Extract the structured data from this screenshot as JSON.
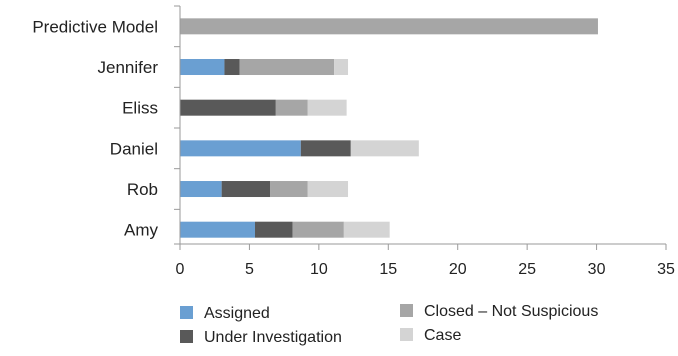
{
  "chart_data": {
    "type": "bar",
    "orientation": "horizontal",
    "stacked": true,
    "categories": [
      "Predictive Model",
      "Jennifer",
      "Eliss",
      "Daniel",
      "Rob",
      "Amy"
    ],
    "series": [
      {
        "name": "Assigned",
        "color": "#6a9fd2",
        "values": [
          0,
          3.2,
          0,
          8.7,
          3.0,
          5.4
        ]
      },
      {
        "name": "Under Investigation",
        "color": "#595959",
        "values": [
          0,
          1.1,
          6.9,
          3.6,
          3.5,
          2.7
        ]
      },
      {
        "name": "Closed – Not Suspicious",
        "color": "#a6a6a6",
        "values": [
          30.1,
          6.8,
          2.3,
          0,
          2.7,
          3.7
        ]
      },
      {
        "name": "Case",
        "color": "#d4d4d4",
        "values": [
          0,
          1.0,
          2.8,
          4.9,
          2.9,
          3.3
        ]
      }
    ],
    "xlim": [
      0,
      35
    ],
    "xticks": [
      "0",
      "5",
      "10",
      "15",
      "20",
      "25",
      "30",
      "35"
    ],
    "xlabel": "",
    "ylabel": "",
    "title": "",
    "grid": false,
    "legend_position": "bottom"
  }
}
